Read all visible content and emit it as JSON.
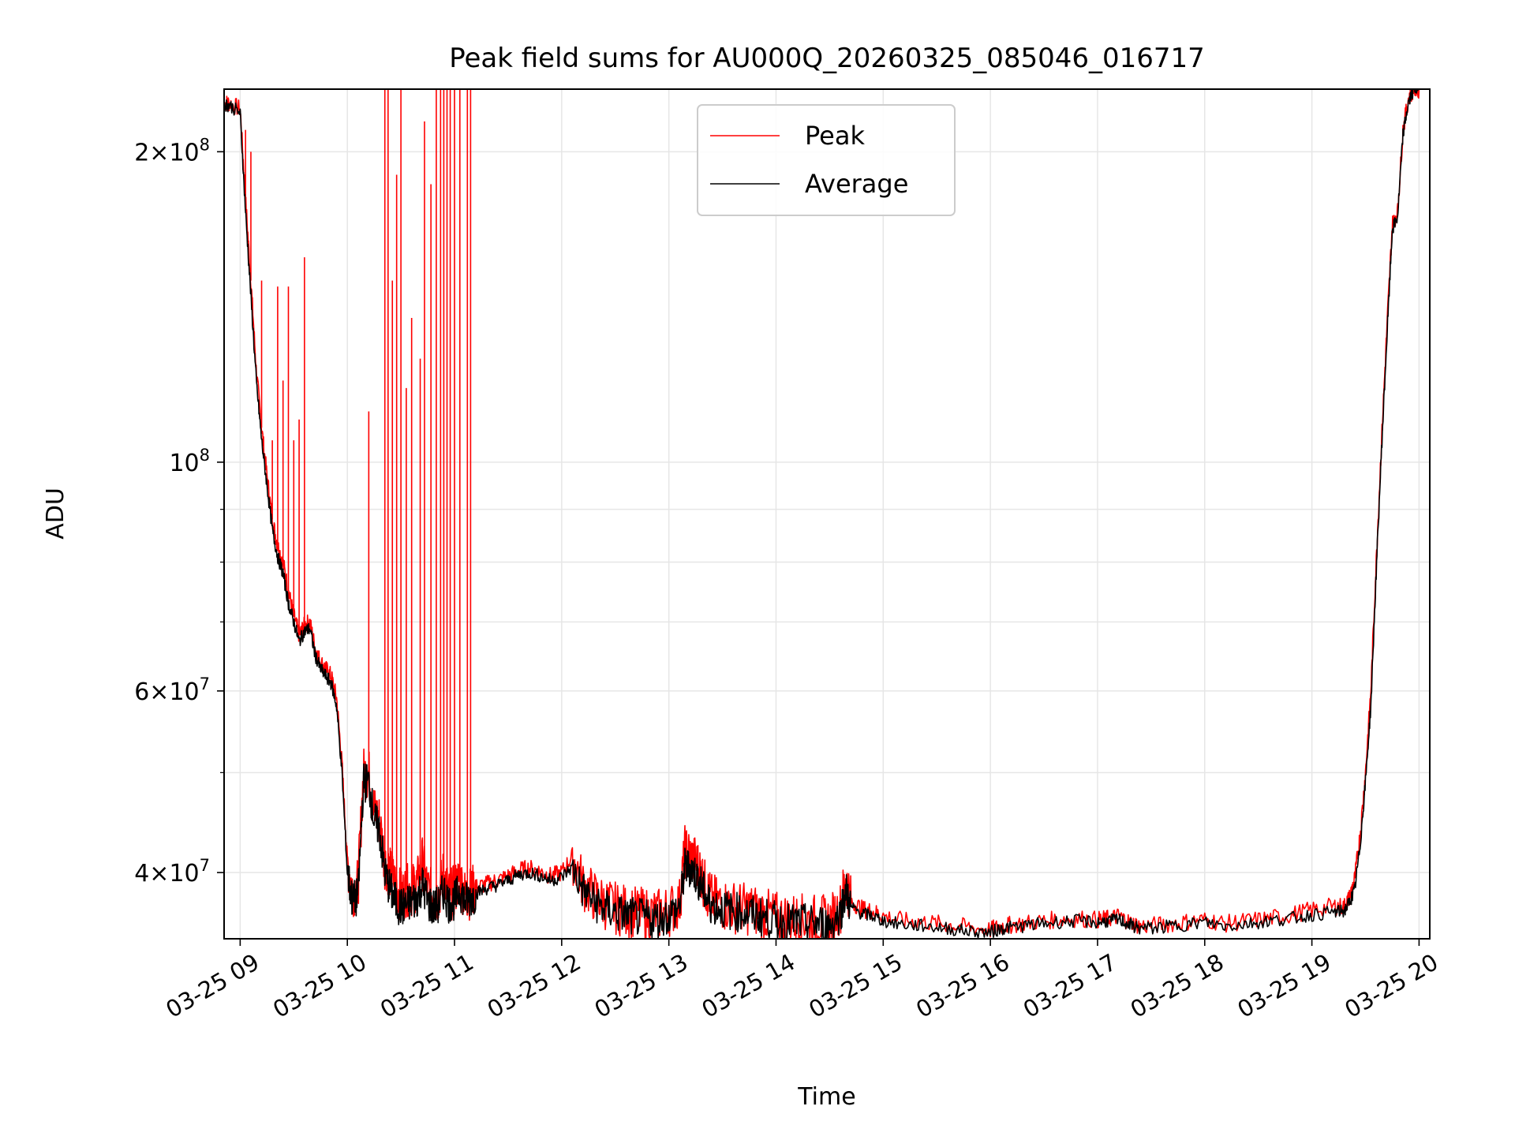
{
  "chart_data": {
    "type": "line",
    "title": "Peak field sums for AU000Q_20260325_085046_016717",
    "xlabel": "Time",
    "ylabel": "ADU",
    "yscale": "log",
    "grid": true,
    "legend_position": "top-center",
    "xlim": [
      8.85,
      20.1
    ],
    "ylim": [
      34500000,
      230000000
    ],
    "x_ticks": [
      {
        "value": 9,
        "label": "03-25 09"
      },
      {
        "value": 10,
        "label": "03-25 10"
      },
      {
        "value": 11,
        "label": "03-25 11"
      },
      {
        "value": 12,
        "label": "03-25 12"
      },
      {
        "value": 13,
        "label": "03-25 13"
      },
      {
        "value": 14,
        "label": "03-25 14"
      },
      {
        "value": 15,
        "label": "03-25 15"
      },
      {
        "value": 16,
        "label": "03-25 16"
      },
      {
        "value": 17,
        "label": "03-25 17"
      },
      {
        "value": 18,
        "label": "03-25 18"
      },
      {
        "value": 19,
        "label": "03-25 19"
      },
      {
        "value": 20,
        "label": "03-25 20"
      }
    ],
    "y_major_ticks": [
      {
        "value": 40000000,
        "mant": "4",
        "exp": "7"
      },
      {
        "value": 60000000,
        "mant": "6",
        "exp": "7"
      },
      {
        "value": 100000000,
        "mant": "",
        "exp": "8"
      },
      {
        "value": 200000000,
        "mant": "2",
        "exp": "8"
      }
    ],
    "y_minor_ticks": [
      50000000,
      70000000,
      80000000,
      90000000
    ],
    "series": [
      {
        "name": "Peak",
        "color": "#ff0000",
        "x": [
          8.85,
          8.9,
          9.0,
          9.05,
          9.1,
          9.15,
          9.2,
          9.25,
          9.3,
          9.35,
          9.4,
          9.45,
          9.5,
          9.55,
          9.6,
          9.65,
          9.7,
          9.75,
          9.8,
          9.85,
          9.9,
          9.95,
          10.0,
          10.05,
          10.1,
          10.15,
          10.2,
          10.25,
          10.3,
          10.35,
          10.4,
          10.45,
          10.5,
          10.55,
          10.6,
          10.65,
          10.7,
          10.75,
          10.8,
          10.85,
          10.9,
          10.95,
          11.0,
          11.05,
          11.1,
          11.15,
          11.2,
          11.3,
          11.4,
          11.5,
          11.6,
          11.7,
          11.8,
          11.9,
          12.0,
          12.1,
          12.2,
          12.3,
          12.4,
          12.5,
          12.6,
          12.7,
          12.8,
          12.9,
          13.0,
          13.1,
          13.15,
          13.2,
          13.25,
          13.3,
          13.35,
          13.4,
          13.5,
          13.6,
          13.7,
          13.8,
          13.9,
          14.0,
          14.1,
          14.2,
          14.3,
          14.4,
          14.5,
          14.6,
          14.65,
          14.7,
          14.8,
          14.9,
          15.0,
          15.2,
          15.4,
          15.6,
          15.8,
          16.0,
          16.1,
          16.2,
          16.4,
          16.6,
          16.8,
          17.0,
          17.1,
          17.2,
          17.3,
          17.4,
          17.6,
          17.8,
          18.0,
          18.2,
          18.4,
          18.6,
          18.8,
          19.0,
          19.2,
          19.3,
          19.35,
          19.4,
          19.45,
          19.5,
          19.55,
          19.6,
          19.65,
          19.7,
          19.75,
          19.8,
          19.85,
          19.9,
          19.95,
          20.0
        ],
        "y": [
          223000000,
          223000000,
          220000000,
          180000000,
          150000000,
          123000000,
          108000000,
          97000000,
          88000000,
          83000000,
          80000000,
          75000000,
          71000000,
          68000000,
          69500000,
          70000000,
          66000000,
          64000000,
          63000000,
          62000000,
          59000000,
          51000000,
          41000000,
          38500000,
          39000000,
          50000000,
          50000000,
          46000000,
          45000000,
          41000000,
          40000000,
          39000000,
          38000000,
          38500000,
          38500000,
          39000000,
          41000000,
          38500000,
          38000000,
          38000000,
          40000000,
          38000000,
          38500000,
          39500000,
          38000000,
          38300000,
          38700000,
          39000000,
          39300000,
          39700000,
          40200000,
          40400000,
          40100000,
          39700000,
          40000000,
          41500000,
          39000000,
          38000000,
          37400000,
          37000000,
          36800000,
          36600000,
          36500000,
          36500000,
          36800000,
          37400000,
          42000000,
          41500000,
          41000000,
          40000000,
          38500000,
          37700000,
          37300000,
          37100000,
          37000000,
          36800000,
          36500000,
          36200000,
          36100000,
          36100000,
          36000000,
          36000000,
          35900000,
          37000000,
          39500000,
          37500000,
          36900000,
          36700000,
          36300000,
          35900000,
          35800000,
          35600000,
          35400000,
          35200000,
          35500000,
          35600000,
          35800000,
          36000000,
          36100000,
          36000000,
          36100000,
          36300000,
          35800000,
          35500000,
          35600000,
          35800000,
          36000000,
          35700000,
          35900000,
          36100000,
          36400000,
          36800000,
          37100000,
          37100000,
          37800000,
          39500000,
          43500000,
          50000000,
          60000000,
          80000000,
          105000000,
          135000000,
          170000000,
          175000000,
          210000000,
          225000000,
          230000000,
          230000000
        ]
      },
      {
        "name": "Average",
        "color": "#000000",
        "x": [
          8.85,
          8.9,
          9.0,
          9.05,
          9.1,
          9.15,
          9.2,
          9.25,
          9.3,
          9.35,
          9.4,
          9.45,
          9.5,
          9.55,
          9.6,
          9.65,
          9.7,
          9.75,
          9.8,
          9.85,
          9.9,
          9.95,
          10.0,
          10.05,
          10.1,
          10.15,
          10.2,
          10.25,
          10.3,
          10.35,
          10.4,
          10.45,
          10.5,
          10.55,
          10.6,
          10.65,
          10.7,
          10.75,
          10.8,
          10.85,
          10.9,
          10.95,
          11.0,
          11.05,
          11.1,
          11.15,
          11.2,
          11.3,
          11.4,
          11.5,
          11.6,
          11.7,
          11.8,
          11.9,
          12.0,
          12.1,
          12.2,
          12.3,
          12.4,
          12.5,
          12.6,
          12.7,
          12.8,
          12.9,
          13.0,
          13.1,
          13.15,
          13.2,
          13.25,
          13.3,
          13.35,
          13.4,
          13.5,
          13.6,
          13.7,
          13.8,
          13.9,
          14.0,
          14.1,
          14.2,
          14.3,
          14.4,
          14.5,
          14.6,
          14.65,
          14.7,
          14.8,
          14.9,
          15.0,
          15.2,
          15.4,
          15.6,
          15.8,
          16.0,
          16.1,
          16.2,
          16.4,
          16.6,
          16.8,
          17.0,
          17.1,
          17.2,
          17.3,
          17.4,
          17.6,
          17.8,
          18.0,
          18.2,
          18.4,
          18.6,
          18.8,
          19.0,
          19.2,
          19.3,
          19.35,
          19.4,
          19.45,
          19.5,
          19.55,
          19.6,
          19.65,
          19.7,
          19.75,
          19.8,
          19.85,
          19.9,
          19.95,
          20.0
        ],
        "y": [
          222000000,
          222000000,
          218000000,
          175000000,
          145000000,
          120000000,
          105000000,
          95000000,
          86000000,
          81000000,
          78000000,
          73000000,
          70000000,
          67000000,
          68500000,
          69000000,
          65000000,
          63000000,
          62000000,
          61000000,
          58000000,
          50000000,
          40000000,
          37500000,
          38000000,
          49000000,
          49000000,
          45000000,
          44000000,
          40000000,
          38500000,
          37500000,
          37000000,
          37200000,
          37500000,
          37800000,
          39000000,
          37500000,
          37000000,
          37200000,
          38500000,
          37300000,
          37600000,
          38500000,
          37500000,
          37800000,
          38200000,
          38600000,
          38900000,
          39300000,
          39800000,
          40000000,
          39700000,
          39300000,
          39600000,
          40500000,
          38500000,
          37500000,
          36900000,
          36600000,
          36400000,
          36200000,
          36100000,
          36100000,
          36400000,
          37000000,
          40500000,
          40500000,
          39800000,
          39000000,
          37800000,
          37200000,
          36900000,
          36700000,
          36600000,
          36400000,
          36200000,
          35900000,
          35800000,
          35800000,
          35700000,
          35700000,
          35600000,
          36500000,
          38500000,
          37000000,
          36500000,
          36300000,
          35900000,
          35600000,
          35500000,
          35300000,
          35100000,
          35000000,
          35300000,
          35400000,
          35600000,
          35800000,
          35900000,
          35800000,
          35900000,
          36000000,
          35600000,
          35300000,
          35400000,
          35600000,
          35800000,
          35500000,
          35700000,
          35900000,
          36100000,
          36400000,
          36600000,
          36700000,
          37400000,
          38500000,
          42500000,
          49000000,
          58000000,
          78000000,
          103000000,
          132000000,
          168000000,
          173000000,
          208000000,
          223000000,
          230000000,
          230000000
        ]
      }
    ],
    "peak_spikes": {
      "description_hidden": "",
      "x": [
        9.05,
        9.1,
        9.2,
        9.3,
        9.35,
        9.4,
        9.45,
        9.5,
        9.55,
        9.6,
        10.2,
        10.35,
        10.38,
        10.42,
        10.46,
        10.5,
        10.55,
        10.6,
        10.68,
        10.72,
        10.78,
        10.83,
        10.87,
        10.9,
        10.93,
        10.96,
        11.0,
        11.05,
        11.12,
        11.15
      ],
      "y": [
        210000000,
        200000000,
        150000000,
        105000000,
        148000000,
        120000000,
        148000000,
        105000000,
        110000000,
        158000000,
        112000000,
        230000000,
        230000000,
        150000000,
        190000000,
        230000000,
        118000000,
        138000000,
        126000000,
        214000000,
        186000000,
        230000000,
        230000000,
        230000000,
        230000000,
        230000000,
        230000000,
        230000000,
        230000000,
        230000000
      ]
    }
  }
}
